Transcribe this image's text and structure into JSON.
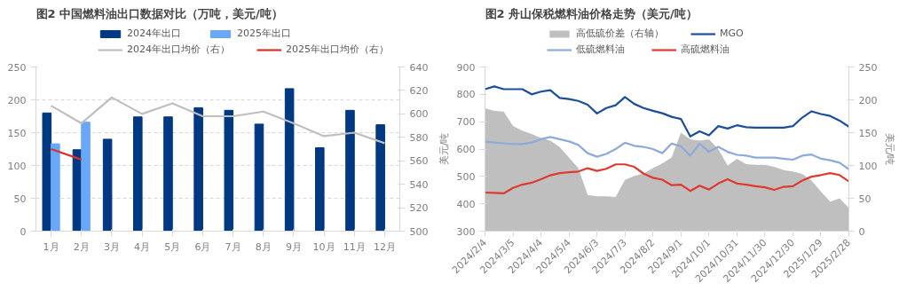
{
  "chart_data": [
    {
      "type": "bar",
      "title": "图2 中国燃料油出口数据对比（万吨，美元/吨）",
      "categories": [
        "1月",
        "2月",
        "3月",
        "4月",
        "5月",
        "6月",
        "7月",
        "8月",
        "9月",
        "10月",
        "11月",
        "12月"
      ],
      "series": [
        {
          "name": "2024年出口",
          "color": "#003882",
          "values": [
            180,
            124,
            140,
            174,
            174,
            188,
            184,
            163,
            217,
            127,
            184,
            162
          ]
        },
        {
          "name": "2025年出口",
          "color": "#6aa8f7",
          "values": [
            133,
            166,
            null,
            null,
            null,
            null,
            null,
            null,
            null,
            null,
            null,
            null
          ]
        },
        {
          "name": "2024年出口均价（右）",
          "type": "line",
          "axis": "y2",
          "color": "#bfbfbf",
          "values": [
            607,
            592,
            614,
            600,
            609,
            598,
            598,
            602,
            592,
            581,
            584,
            575
          ]
        },
        {
          "name": "2025年出口均价（右）",
          "type": "line",
          "axis": "y2",
          "color": "#d8312a",
          "values": [
            570,
            561,
            null,
            null,
            null,
            null,
            null,
            null,
            null,
            null,
            null,
            null
          ]
        }
      ],
      "ylim": [
        0,
        250
      ],
      "yticks": [
        0,
        50,
        100,
        150,
        200,
        250
      ],
      "y2lim": [
        500,
        640
      ],
      "y2ticks": [
        500,
        520,
        540,
        560,
        580,
        600,
        620,
        640
      ],
      "grid": "y",
      "legend": "top"
    },
    {
      "type": "line",
      "title": "图2 舟山保税燃料油价格走势（美元/吨）",
      "ylabel": "美元/吨",
      "y2label": "美元/吨",
      "x": [
        "2024-02-04",
        "2024-02-14",
        "2024-02-24",
        "2024-03-05",
        "2024-03-15",
        "2024-03-25",
        "2024-04-04",
        "2024-04-14",
        "2024-04-24",
        "2024-05-04",
        "2024-05-14",
        "2024-05-24",
        "2024-06-03",
        "2024-06-13",
        "2024-06-23",
        "2024-07-03",
        "2024-07-13",
        "2024-07-23",
        "2024-08-02",
        "2024-08-12",
        "2024-08-22",
        "2024-09-01",
        "2024-09-11",
        "2024-09-21",
        "2024-10-01",
        "2024-10-11",
        "2024-10-21",
        "2024-10-31",
        "2024-11-10",
        "2024-11-20",
        "2024-11-30",
        "2024-12-10",
        "2024-12-20",
        "2024-12-30",
        "2025-01-09",
        "2025-01-19",
        "2025-01-29",
        "2025-02-08",
        "2025-02-18",
        "2025-02-28"
      ],
      "series": [
        {
          "name": "高低硫价差（右轴）",
          "type": "area",
          "axis": "y2",
          "color": "#bfbfbf",
          "values": [
            187,
            183,
            182,
            160,
            153,
            148,
            142,
            138,
            128,
            112,
            96,
            55,
            53,
            53,
            52,
            78,
            84,
            88,
            96,
            103,
            112,
            150,
            140,
            138,
            140,
            125,
            100,
            110,
            102,
            101,
            101,
            98,
            93,
            91,
            87,
            77,
            60,
            45,
            50,
            35
          ]
        },
        {
          "name": "MGO",
          "color": "#1c4e9c",
          "values": [
            819,
            829,
            819,
            819,
            819,
            800,
            810,
            815,
            787,
            783,
            776,
            762,
            730,
            750,
            760,
            790,
            765,
            750,
            740,
            731,
            718,
            710,
            646,
            665,
            650,
            684,
            675,
            687,
            680,
            678,
            678,
            678,
            678,
            684,
            715,
            738,
            728,
            721,
            704,
            682
          ]
        },
        {
          "name": "低硫燃料油",
          "color": "#8eaadb",
          "values": [
            627,
            624,
            621,
            618,
            618,
            624,
            636,
            644,
            636,
            628,
            615,
            585,
            572,
            582,
            600,
            623,
            612,
            608,
            600,
            585,
            620,
            610,
            576,
            620,
            590,
            608,
            590,
            579,
            576,
            569,
            569,
            569,
            565,
            561,
            576,
            580,
            565,
            559,
            550,
            526
          ]
        },
        {
          "name": "高硫燃料油",
          "color": "#e03a2e",
          "values": [
            441,
            440,
            438,
            458,
            470,
            477,
            490,
            504,
            512,
            515,
            518,
            530,
            520,
            528,
            544,
            544,
            535,
            510,
            495,
            488,
            468,
            470,
            447,
            466,
            452,
            474,
            490,
            474,
            470,
            464,
            460,
            451,
            462,
            464,
            485,
            499,
            505,
            512,
            505,
            482
          ]
        }
      ],
      "xlim": [
        "2024-02-04",
        "2025-02-28"
      ],
      "xticks": [
        {
          "value": "2024-02-04",
          "label": "2024/2/4"
        },
        {
          "value": "2024-03-05",
          "label": "2024/3/5"
        },
        {
          "value": "2024-04-04",
          "label": "2024/4/4"
        },
        {
          "value": "2024-05-04",
          "label": "2024/5/4"
        },
        {
          "value": "2024-06-03",
          "label": "2024/6/3"
        },
        {
          "value": "2024-07-03",
          "label": "2024/7/3"
        },
        {
          "value": "2024-08-02",
          "label": "2024/8/2"
        },
        {
          "value": "2024-09-01",
          "label": "2024/9/1"
        },
        {
          "value": "2024-10-01",
          "label": "2024/10/1"
        },
        {
          "value": "2024-10-31",
          "label": "2024/10/31"
        },
        {
          "value": "2024-11-30",
          "label": "2024/11/30"
        },
        {
          "value": "2024-12-30",
          "label": "2024/12/30"
        },
        {
          "value": "2025-01-29",
          "label": "2025/1/29"
        },
        {
          "value": "2025-02-28",
          "label": "2025/2/28"
        }
      ],
      "ylim": [
        300,
        900
      ],
      "yticks": [
        300,
        400,
        500,
        600,
        700,
        800,
        900
      ],
      "y2lim": [
        0,
        250
      ],
      "y2ticks": [
        0,
        50,
        100,
        150,
        200,
        250
      ],
      "grid": false,
      "legend": "top"
    }
  ]
}
